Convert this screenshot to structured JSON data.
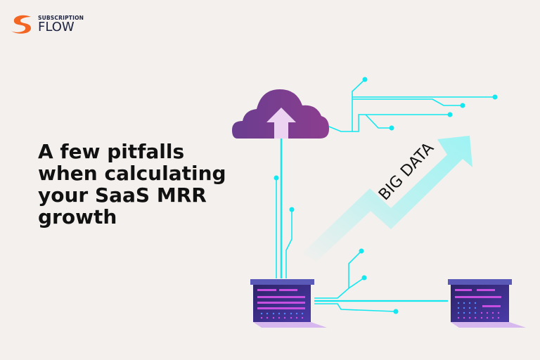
{
  "brand": {
    "small": "SUBSCRIPTION",
    "big": "FLOW",
    "accent": "#f26522",
    "text_color": "#1d2340"
  },
  "headline": {
    "lines": [
      "A few pitfalls",
      "when calculating",
      "your SaaS MRR",
      "growth"
    ]
  },
  "illustration": {
    "arrow_label": "BIG DATA",
    "circuit_color": "#13e8f0",
    "cloud_color": "#7a3e93",
    "server_color": "#3f2f8f",
    "dash_color": "#d36be0"
  }
}
